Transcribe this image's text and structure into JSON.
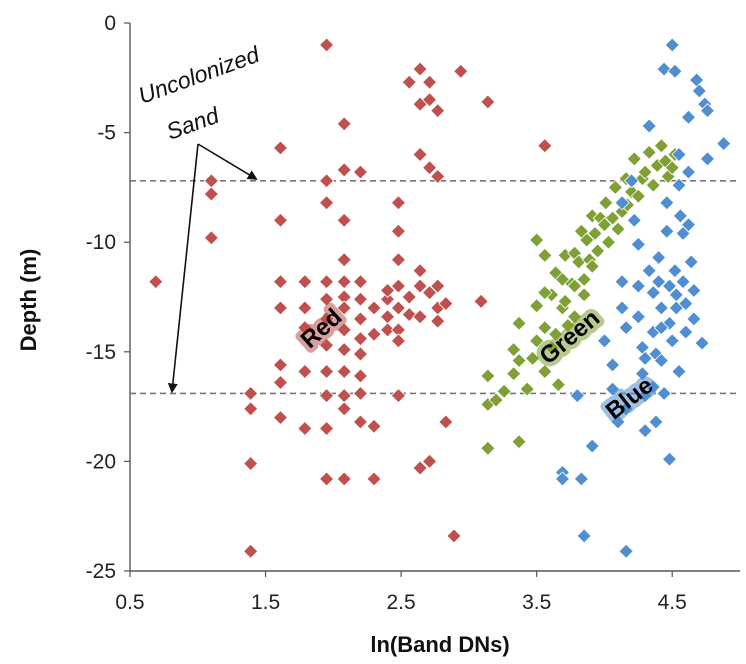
{
  "chart_data": {
    "type": "scatter",
    "title": "",
    "xlabel": "ln(Band DNs)",
    "ylabel": "Depth (m)",
    "xlim": [
      0.5,
      5.0
    ],
    "ylim": [
      -25,
      0
    ],
    "x_tick_labels": [
      "0.5",
      "1.5",
      "2.5",
      "3.5",
      "4.5"
    ],
    "x_ticks": [
      0.5,
      1.5,
      2.5,
      3.5,
      4.5
    ],
    "y_tick_labels": [
      "0",
      "-5",
      "-10",
      "-15",
      "-20",
      "-25"
    ],
    "y_ticks": [
      0,
      -5,
      -10,
      -15,
      -20,
      -25
    ],
    "grid": false,
    "marker": "diamond",
    "reference_lines": [
      {
        "y": -7.2,
        "style": "dashed"
      },
      {
        "y": -16.9,
        "style": "dashed"
      }
    ],
    "annotation": {
      "text_line1": "Uncolonized",
      "text_line2": "Sand"
    },
    "series": [
      {
        "name": "Red",
        "color": "#c0504d",
        "points": [
          [
            0.69,
            -11.8
          ],
          [
            1.1,
            -7.2
          ],
          [
            1.1,
            -7.8
          ],
          [
            1.1,
            -9.8
          ],
          [
            1.39,
            -16.9
          ],
          [
            1.39,
            -17.6
          ],
          [
            1.39,
            -20.1
          ],
          [
            1.39,
            -24.1
          ],
          [
            1.61,
            -5.7
          ],
          [
            1.61,
            -9.0
          ],
          [
            1.61,
            -11.8
          ],
          [
            1.61,
            -13.0
          ],
          [
            1.61,
            -15.6
          ],
          [
            1.61,
            -16.4
          ],
          [
            1.61,
            -18.0
          ],
          [
            1.79,
            -11.8
          ],
          [
            1.79,
            -13.0
          ],
          [
            1.79,
            -15.9
          ],
          [
            1.79,
            -18.5
          ],
          [
            1.95,
            -11.8
          ],
          [
            1.95,
            -12.6
          ],
          [
            1.95,
            -13.5
          ],
          [
            1.95,
            -14.7
          ],
          [
            1.95,
            -15.9
          ],
          [
            1.95,
            -17.0
          ],
          [
            1.95,
            -18.5
          ],
          [
            1.95,
            -20.8
          ],
          [
            1.95,
            -1.0
          ],
          [
            1.95,
            -7.2
          ],
          [
            1.95,
            -8.2
          ],
          [
            2.08,
            -4.6
          ],
          [
            2.08,
            -6.7
          ],
          [
            2.08,
            -9.0
          ],
          [
            2.08,
            -10.8
          ],
          [
            2.08,
            -11.8
          ],
          [
            2.08,
            -12.5
          ],
          [
            2.08,
            -13.0
          ],
          [
            2.08,
            -14.0
          ],
          [
            2.08,
            -14.9
          ],
          [
            2.08,
            -15.9
          ],
          [
            2.08,
            -17.0
          ],
          [
            2.08,
            -17.6
          ],
          [
            2.08,
            -20.8
          ],
          [
            2.2,
            -6.8
          ],
          [
            2.2,
            -11.8
          ],
          [
            2.2,
            -12.6
          ],
          [
            2.2,
            -13.5
          ],
          [
            2.2,
            -15.1
          ],
          [
            2.2,
            -16.1
          ],
          [
            2.2,
            -16.9
          ],
          [
            2.2,
            -18.2
          ],
          [
            2.3,
            -13.0
          ],
          [
            2.3,
            -18.4
          ],
          [
            2.3,
            -20.8
          ],
          [
            2.4,
            -12.6
          ],
          [
            2.4,
            -13.4
          ],
          [
            2.4,
            -14.0
          ],
          [
            2.48,
            -8.2
          ],
          [
            2.48,
            -9.5
          ],
          [
            2.48,
            -10.8
          ],
          [
            2.48,
            -12.0
          ],
          [
            2.48,
            -13.0
          ],
          [
            2.48,
            -14.0
          ],
          [
            2.48,
            -14.5
          ],
          [
            2.48,
            -17.0
          ],
          [
            2.56,
            -2.7
          ],
          [
            2.56,
            -12.5
          ],
          [
            2.56,
            -13.3
          ],
          [
            2.64,
            -2.1
          ],
          [
            2.64,
            -3.7
          ],
          [
            2.64,
            -6.0
          ],
          [
            2.64,
            -11.3
          ],
          [
            2.64,
            -12.0
          ],
          [
            2.64,
            -13.4
          ],
          [
            2.64,
            -20.3
          ],
          [
            2.71,
            -2.7
          ],
          [
            2.71,
            -3.5
          ],
          [
            2.71,
            -6.6
          ],
          [
            2.71,
            -12.3
          ],
          [
            2.77,
            -4.0
          ],
          [
            2.77,
            -7.0
          ],
          [
            2.77,
            -12.0
          ],
          [
            2.77,
            -13.0
          ],
          [
            2.83,
            -18.2
          ],
          [
            2.89,
            -23.4
          ],
          [
            2.94,
            -2.2
          ],
          [
            3.09,
            -12.7
          ],
          [
            3.14,
            -3.6
          ],
          [
            3.56,
            -5.6
          ],
          [
            2.71,
            -20.0
          ],
          [
            2.83,
            -12.8
          ],
          [
            2.77,
            -13.6
          ],
          [
            1.79,
            -13.9
          ],
          [
            2.2,
            -14.4
          ],
          [
            2.3,
            -14.2
          ],
          [
            2.4,
            -12.2
          ]
        ]
      },
      {
        "name": "Green",
        "color": "#7ea035",
        "points": [
          [
            3.14,
            -16.1
          ],
          [
            3.14,
            -17.4
          ],
          [
            3.14,
            -19.4
          ],
          [
            3.2,
            -17.2
          ],
          [
            3.26,
            -16.8
          ],
          [
            3.33,
            -16.0
          ],
          [
            3.33,
            -14.9
          ],
          [
            3.37,
            -13.7
          ],
          [
            3.37,
            -15.4
          ],
          [
            3.37,
            -19.1
          ],
          [
            3.43,
            -16.7
          ],
          [
            3.47,
            -15.3
          ],
          [
            3.5,
            -12.9
          ],
          [
            3.5,
            -14.5
          ],
          [
            3.5,
            -9.9
          ],
          [
            3.56,
            -10.6
          ],
          [
            3.56,
            -13.9
          ],
          [
            3.56,
            -15.9
          ],
          [
            3.61,
            -12.4
          ],
          [
            3.64,
            -11.4
          ],
          [
            3.64,
            -14.2
          ],
          [
            3.66,
            -16.5
          ],
          [
            3.69,
            -11.7
          ],
          [
            3.69,
            -13.0
          ],
          [
            3.71,
            -10.6
          ],
          [
            3.71,
            -12.7
          ],
          [
            3.76,
            -11.9
          ],
          [
            3.78,
            -10.5
          ],
          [
            3.78,
            -13.4
          ],
          [
            3.81,
            -10.9
          ],
          [
            3.83,
            -9.5
          ],
          [
            3.85,
            -11.7
          ],
          [
            3.87,
            -9.9
          ],
          [
            3.89,
            -10.8
          ],
          [
            3.91,
            -8.8
          ],
          [
            3.93,
            -9.6
          ],
          [
            3.95,
            -10.4
          ],
          [
            3.97,
            -8.9
          ],
          [
            4.0,
            -9.2
          ],
          [
            4.01,
            -8.2
          ],
          [
            4.03,
            -10.0
          ],
          [
            4.06,
            -8.9
          ],
          [
            4.08,
            -7.5
          ],
          [
            4.1,
            -9.4
          ],
          [
            4.13,
            -8.6
          ],
          [
            4.16,
            -7.1
          ],
          [
            4.17,
            -8.3
          ],
          [
            4.2,
            -7.7
          ],
          [
            4.22,
            -6.2
          ],
          [
            4.25,
            -7.9
          ],
          [
            4.28,
            -7.1
          ],
          [
            4.3,
            -6.8
          ],
          [
            4.33,
            -5.9
          ],
          [
            4.36,
            -7.4
          ],
          [
            4.39,
            -6.5
          ],
          [
            4.42,
            -5.6
          ],
          [
            4.45,
            -6.3
          ],
          [
            4.47,
            -7.0
          ],
          [
            4.5,
            -6.6
          ],
          [
            4.52,
            -6.0
          ],
          [
            3.85,
            -12.4
          ],
          [
            3.91,
            -11.1
          ],
          [
            3.78,
            -12.0
          ],
          [
            3.56,
            -12.3
          ],
          [
            3.61,
            -14.8
          ],
          [
            3.73,
            -13.8
          ]
        ]
      },
      {
        "name": "Blue",
        "color": "#4f8ed0",
        "points": [
          [
            3.69,
            -20.5
          ],
          [
            3.69,
            -20.8
          ],
          [
            3.8,
            -17.0
          ],
          [
            3.83,
            -20.8
          ],
          [
            3.85,
            -23.4
          ],
          [
            3.91,
            -19.3
          ],
          [
            4.0,
            -14.5
          ],
          [
            4.06,
            -15.6
          ],
          [
            4.06,
            -16.7
          ],
          [
            4.1,
            -18.2
          ],
          [
            4.13,
            -8.2
          ],
          [
            4.13,
            -11.8
          ],
          [
            4.13,
            -13.0
          ],
          [
            4.16,
            -24.1
          ],
          [
            4.16,
            -17.6
          ],
          [
            4.2,
            -7.2
          ],
          [
            4.22,
            -9.0
          ],
          [
            4.25,
            -10.1
          ],
          [
            4.25,
            -12.0
          ],
          [
            4.25,
            -13.4
          ],
          [
            4.28,
            -14.8
          ],
          [
            4.28,
            -16.0
          ],
          [
            4.3,
            -17.0
          ],
          [
            4.3,
            -18.6
          ],
          [
            4.33,
            -4.7
          ],
          [
            4.33,
            -11.3
          ],
          [
            4.36,
            -12.3
          ],
          [
            4.36,
            -14.1
          ],
          [
            4.38,
            -15.1
          ],
          [
            4.38,
            -18.2
          ],
          [
            4.4,
            -10.7
          ],
          [
            4.4,
            -11.8
          ],
          [
            4.42,
            -13.0
          ],
          [
            4.42,
            -15.4
          ],
          [
            4.44,
            -2.1
          ],
          [
            4.44,
            -16.9
          ],
          [
            4.46,
            -8.2
          ],
          [
            4.46,
            -9.5
          ],
          [
            4.48,
            -12.0
          ],
          [
            4.48,
            -13.7
          ],
          [
            4.5,
            -14.5
          ],
          [
            4.5,
            -1.0
          ],
          [
            4.52,
            -2.2
          ],
          [
            4.52,
            -11.3
          ],
          [
            4.53,
            -12.4
          ],
          [
            4.53,
            -13.0
          ],
          [
            4.55,
            -15.9
          ],
          [
            4.55,
            -6.0
          ],
          [
            4.56,
            -8.8
          ],
          [
            4.58,
            -9.6
          ],
          [
            4.58,
            -11.8
          ],
          [
            4.6,
            -12.8
          ],
          [
            4.6,
            -14.1
          ],
          [
            4.62,
            -4.3
          ],
          [
            4.62,
            -6.8
          ],
          [
            4.64,
            -10.9
          ],
          [
            4.66,
            -12.2
          ],
          [
            4.66,
            -13.5
          ],
          [
            4.68,
            -2.6
          ],
          [
            4.7,
            -3.1
          ],
          [
            4.72,
            -14.6
          ],
          [
            4.74,
            -3.7
          ],
          [
            4.76,
            -6.2
          ],
          [
            4.76,
            -4.0
          ],
          [
            4.88,
            -5.5
          ],
          [
            4.36,
            -16.6
          ],
          [
            4.48,
            -19.9
          ],
          [
            4.55,
            -7.4
          ],
          [
            4.42,
            -13.9
          ],
          [
            4.62,
            -9.2
          ],
          [
            4.3,
            -15.3
          ],
          [
            4.16,
            -13.9
          ]
        ]
      }
    ]
  }
}
